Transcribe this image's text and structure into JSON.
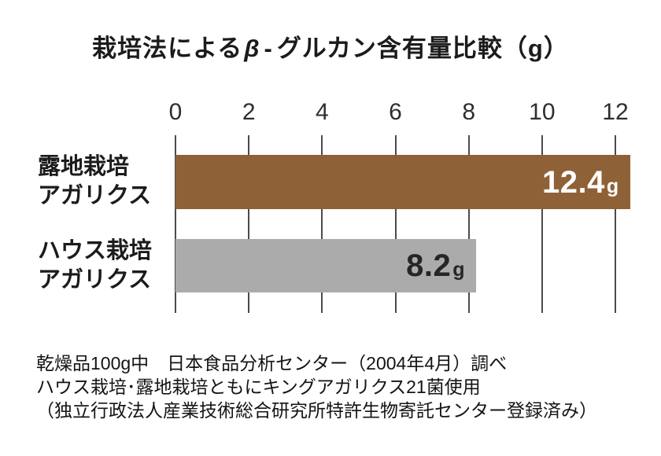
{
  "title": {
    "prefix": "栽培法による",
    "beta": "β",
    "dash": "-",
    "suffix": "グルカン含有量比較（g）"
  },
  "chart_data": {
    "type": "bar",
    "orientation": "horizontal",
    "title": "栽培法によるβ-グルカン含有量比較（g）",
    "categories": [
      "露地栽培アガリクス",
      "ハウス栽培アガリクス"
    ],
    "values": [
      12.4,
      8.2
    ],
    "unit": "g",
    "xlim": [
      0,
      12
    ],
    "xticks": [
      0,
      2,
      4,
      6,
      8,
      10,
      12
    ],
    "grid": true,
    "legend": false,
    "bar_colors": [
      "#8F6136",
      "#ABABAC"
    ],
    "value_label_colors": [
      "#FFFFFF",
      "#262626"
    ],
    "gridline_color": "#4B4B4B"
  },
  "rows": [
    {
      "label_line1": "露地栽培",
      "label_line2": "アガリクス",
      "value": "12.4",
      "unit": "g"
    },
    {
      "label_line1": "ハウス栽培",
      "label_line2": "アガリクス",
      "value": "8.2",
      "unit": "g"
    }
  ],
  "footer": {
    "lines": [
      "乾燥品100g中　日本食品分析センター（2004年4月）調べ",
      "ハウス栽培･露地栽培ともにキングアガリクス21菌使用",
      "（独立行政法人産業技術総合研究所特許生物寄託センター登録済み）"
    ]
  }
}
